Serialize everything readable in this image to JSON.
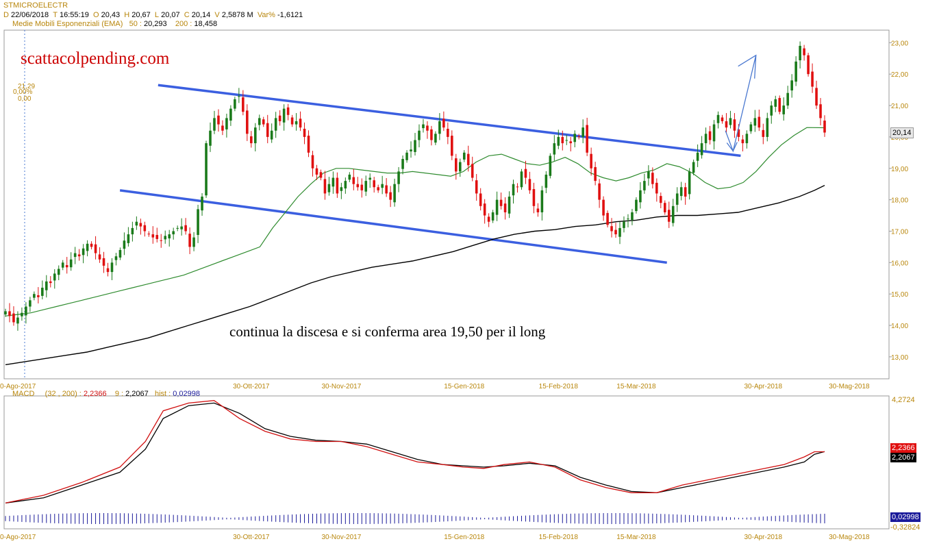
{
  "header": {
    "symbol": "STMICROELECTR",
    "row1": [
      {
        "k": "D",
        "v": "22/06/2018"
      },
      {
        "k": "T",
        "v": "16:55:19"
      },
      {
        "k": "O",
        "v": "20,43"
      },
      {
        "k": "H",
        "v": "20,67"
      },
      {
        "k": "L",
        "v": "20,07"
      },
      {
        "k": "C",
        "v": "20,14"
      },
      {
        "k": "V",
        "v": "2,5878 M"
      },
      {
        "k": "Var%",
        "v": "-1,6121"
      }
    ],
    "ema_label": "Medie Mobili Esponenziali (EMA)",
    "ema50_label": "50 :",
    "ema50_value": "20,293",
    "ema200_label": "200 :",
    "ema200_value": "18,458"
  },
  "watermark": "scattacolpending.com",
  "annotation": "continua la discesa e si conferma area 19,50 per il long",
  "small_annotation": {
    "a": "21,29",
    "b": "0,00%",
    "c": "0,00"
  },
  "last_price_tag": "20,14",
  "macd_header": {
    "name": "MACD",
    "params": "(32 , 200) :",
    "macd_value": "2,2366",
    "signal_label": "9 :",
    "signal_value": "2,2067",
    "hist_label": "hist :",
    "hist_value": "0,02998"
  },
  "macd_tags": {
    "macd": "2,2366",
    "signal": "2,2067",
    "hist": "0,02998",
    "top": "4,2724",
    "bottom": "-0,32824"
  },
  "colors": {
    "up": "#1a7a1a",
    "down": "#e01010",
    "ema50": "#2e8b2e",
    "ema200": "#000000",
    "channel": "#3b5fe0",
    "arrow": "#4a78d0",
    "axis_text": "#b8860b",
    "macd": "#d01010",
    "signal": "#000000",
    "hist": "#1a1a9a"
  },
  "chart_data": {
    "type": "candlestick",
    "title": "STMICROELECTR",
    "date_ticks": [
      "0-Ago-2017",
      "30-Ott-2017",
      "30-Nov-2017",
      "15-Gen-2018",
      "15-Feb-2018",
      "15-Mar-2018",
      "30-Apr-2018",
      "30-Mag-2018"
    ],
    "date_tick_index": [
      0,
      60,
      82,
      112,
      135,
      154,
      185,
      206
    ],
    "y_ticks": [
      "13,00",
      "14,00",
      "15,00",
      "16,00",
      "17,00",
      "18,00",
      "19,00",
      "20,00",
      "21,00",
      "22,00",
      "23,00"
    ],
    "ylim": [
      12.3,
      23.4
    ],
    "close": [
      14.45,
      14.3,
      14.1,
      14.25,
      14.4,
      14.6,
      14.8,
      15.0,
      14.9,
      15.2,
      15.4,
      15.35,
      15.65,
      15.8,
      16.0,
      15.85,
      16.1,
      16.3,
      16.2,
      16.45,
      16.6,
      16.5,
      16.3,
      16.1,
      15.9,
      15.7,
      16.0,
      16.2,
      16.4,
      16.7,
      16.9,
      17.1,
      17.3,
      17.15,
      17.0,
      16.9,
      16.8,
      16.75,
      16.7,
      16.85,
      16.9,
      17.0,
      17.1,
      17.15,
      17.0,
      16.5,
      16.8,
      17.7,
      18.1,
      19.8,
      20.2,
      20.6,
      20.4,
      20.2,
      20.6,
      20.9,
      21.2,
      21.3,
      20.8,
      20.1,
      19.8,
      20.3,
      20.6,
      20.4,
      20.0,
      20.2,
      20.6,
      20.5,
      20.9,
      20.7,
      20.4,
      20.5,
      20.3,
      20.0,
      19.5,
      19.0,
      18.8,
      18.7,
      18.2,
      18.5,
      18.7,
      18.2,
      18.4,
      18.6,
      18.8,
      18.5,
      18.4,
      18.3,
      18.6,
      18.7,
      18.4,
      18.3,
      18.5,
      18.2,
      18.0,
      18.5,
      18.9,
      19.3,
      19.5,
      19.6,
      19.9,
      20.2,
      20.4,
      20.2,
      19.9,
      20.1,
      20.5,
      20.3,
      20.0,
      19.4,
      18.9,
      19.2,
      19.5,
      19.1,
      18.7,
      18.2,
      17.8,
      17.5,
      17.3,
      17.6,
      18.0,
      17.8,
      17.6,
      18.1,
      18.5,
      18.4,
      18.9,
      18.7,
      18.3,
      17.8,
      17.6,
      18.3,
      18.8,
      19.4,
      19.8,
      20.0,
      19.8,
      19.9,
      19.8,
      20.1,
      20.0,
      20.3,
      19.5,
      19.0,
      18.6,
      18.0,
      17.5,
      17.2,
      17.0,
      16.9,
      17.1,
      17.3,
      17.4,
      17.6,
      18.0,
      18.3,
      18.6,
      18.9,
      18.5,
      18.2,
      17.9,
      17.6,
      17.3,
      17.8,
      18.2,
      18.4,
      18.1,
      18.9,
      19.2,
      19.5,
      19.8,
      20.1,
      19.9,
      20.4,
      20.7,
      20.5,
      20.3,
      20.6,
      20.2,
      20.0,
      19.8,
      20.1,
      20.4,
      20.6,
      20.3,
      20.0,
      20.6,
      21.0,
      21.2,
      20.8,
      21.0,
      21.4,
      21.8,
      22.4,
      22.9,
      22.6,
      22.0,
      21.6,
      21.0,
      20.6,
      20.14
    ],
    "ema50": [
      14.3,
      14.35,
      14.4,
      14.5,
      14.6,
      14.7,
      14.8,
      14.9,
      15.0,
      15.1,
      15.2,
      15.3,
      15.4,
      15.5,
      15.6,
      15.75,
      15.9,
      16.05,
      16.2,
      16.35,
      16.5,
      17.1,
      17.6,
      18.1,
      18.5,
      18.85,
      19.0,
      19.0,
      18.95,
      18.9,
      18.85,
      18.85,
      18.9,
      18.85,
      18.8,
      18.75,
      18.9,
      19.2,
      19.4,
      19.45,
      19.3,
      19.15,
      19.1,
      19.2,
      19.35,
      19.15,
      18.85,
      18.7,
      18.6,
      18.7,
      18.85,
      18.95,
      19.15,
      19.05,
      18.85,
      18.55,
      18.35,
      18.4,
      18.55,
      18.9,
      19.35,
      19.75,
      20.05,
      20.3,
      20.293
    ],
    "ema50_x": [
      0,
      5,
      10,
      15,
      20,
      25,
      30,
      35,
      40,
      45,
      50,
      55,
      60,
      65,
      70,
      75,
      80,
      85,
      90,
      95,
      100,
      105,
      110,
      115,
      120,
      125,
      130,
      135,
      140,
      145,
      150,
      155,
      160,
      165,
      170,
      175,
      180,
      185,
      190,
      195,
      200,
      205,
      210,
      215,
      220,
      225,
      230,
      235,
      240,
      245,
      250,
      255,
      260,
      265,
      270,
      275,
      280,
      285,
      290,
      295,
      300,
      305,
      310,
      315,
      322
    ],
    "ema200": [
      12.75,
      12.85,
      12.95,
      13.05,
      13.15,
      13.3,
      13.45,
      13.6,
      13.8,
      14.0,
      14.2,
      14.4,
      14.6,
      14.85,
      15.1,
      15.35,
      15.55,
      15.7,
      15.85,
      15.95,
      16.05,
      16.2,
      16.35,
      16.55,
      16.75,
      16.9,
      17.0,
      17.05,
      17.15,
      17.2,
      17.3,
      17.35,
      17.45,
      17.5,
      17.5,
      17.55,
      17.6,
      17.75,
      17.9,
      18.1,
      18.3,
      18.458
    ],
    "ema200_x": [
      0,
      8,
      16,
      24,
      32,
      40,
      48,
      56,
      64,
      72,
      80,
      88,
      96,
      104,
      112,
      120,
      128,
      136,
      144,
      152,
      160,
      168,
      176,
      184,
      192,
      200,
      208,
      216,
      224,
      232,
      240,
      248,
      256,
      264,
      272,
      280,
      288,
      296,
      304,
      312,
      318,
      322
    ],
    "channel_upper": [
      [
        60,
        21.65
      ],
      [
        289,
        19.4
      ]
    ],
    "channel_lower": [
      [
        45,
        18.3
      ],
      [
        260,
        16.0
      ]
    ],
    "arrow_down": [
      [
        283,
        20.2
      ],
      [
        286,
        19.55
      ]
    ],
    "arrow_up": [
      [
        286,
        19.55
      ],
      [
        295,
        22.6
      ]
    ],
    "macd": {
      "macd": [
        0.2,
        0.5,
        1.0,
        1.6,
        2.6,
        3.8,
        4.1,
        4.2,
        3.5,
        3.0,
        2.7,
        2.6,
        2.6,
        2.4,
        2.1,
        1.8,
        1.7,
        1.6,
        1.55,
        1.7,
        1.8,
        1.6,
        1.1,
        0.8,
        0.6,
        0.6,
        0.9,
        1.1,
        1.3,
        1.5,
        1.7,
        2.0,
        2.2,
        2.2
      ],
      "signal": [
        0.2,
        0.4,
        0.9,
        1.4,
        2.3,
        3.5,
        4.0,
        4.1,
        3.7,
        3.1,
        2.8,
        2.65,
        2.6,
        2.5,
        2.2,
        1.9,
        1.7,
        1.65,
        1.6,
        1.65,
        1.75,
        1.65,
        1.2,
        0.9,
        0.65,
        0.6,
        0.8,
        1.0,
        1.2,
        1.4,
        1.6,
        1.8,
        2.1,
        2.2067
      ],
      "x": [
        0,
        15,
        30,
        45,
        55,
        62,
        72,
        82,
        92,
        102,
        112,
        122,
        132,
        142,
        152,
        162,
        172,
        180,
        188,
        196,
        206,
        216,
        226,
        236,
        246,
        256,
        266,
        276,
        286,
        296,
        306,
        314,
        318,
        322
      ],
      "ylim": [
        -0.32824,
        4.2724
      ]
    }
  }
}
